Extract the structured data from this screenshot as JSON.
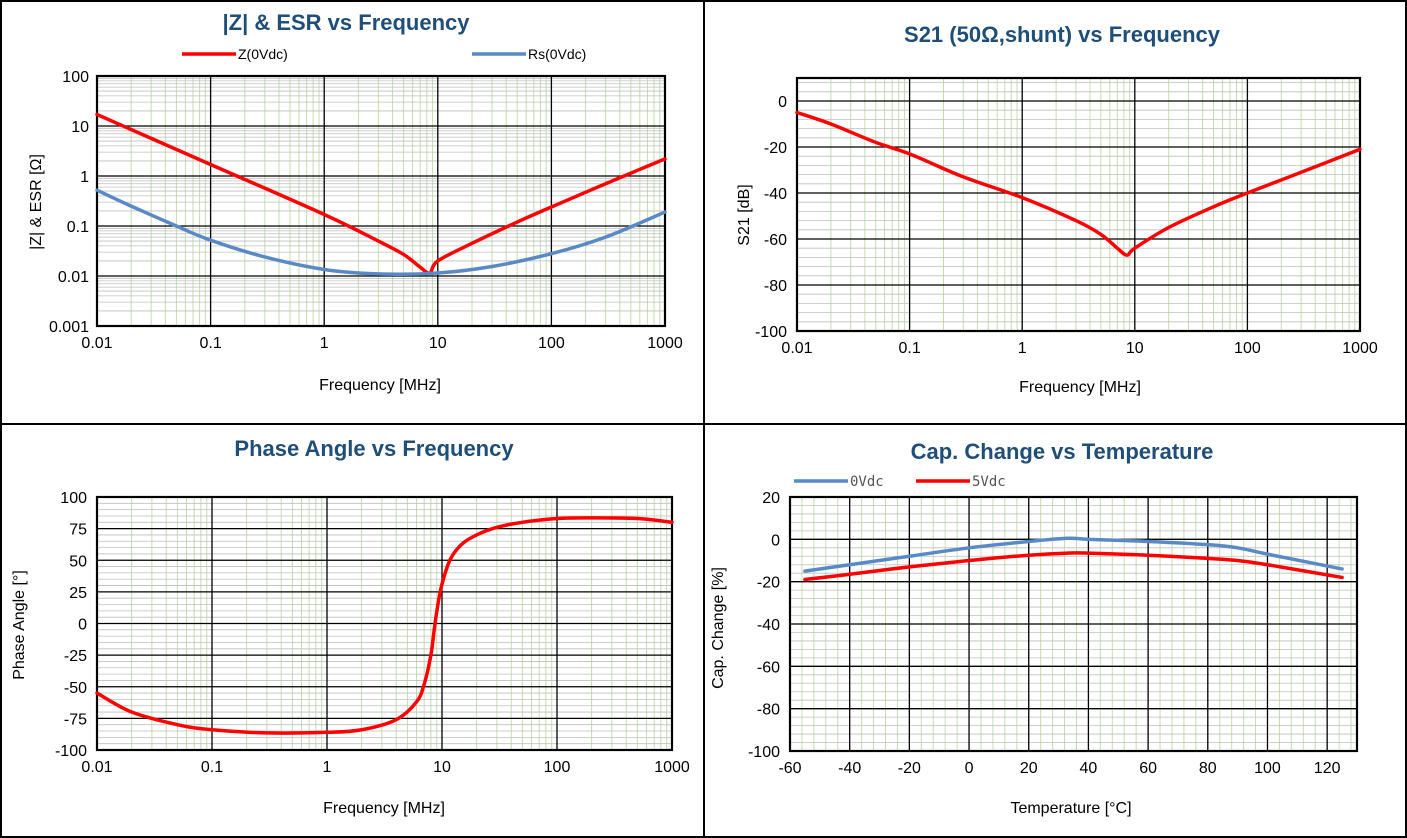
{
  "colors": {
    "title": "#1F4E79",
    "red": "#ff0000",
    "blue": "#5a8ac6",
    "minor_grid": "#c6dcae"
  },
  "chart_data": [
    {
      "id": "impedance",
      "type": "line",
      "title": "|Z| & ESR vs Frequency",
      "xlabel": "Frequency [MHz]",
      "ylabel": "|Z| & ESR [Ω]",
      "xscale": "log",
      "yscale": "log",
      "xlim": [
        0.01,
        1000
      ],
      "ylim": [
        0.001,
        100
      ],
      "xticks": [
        "0.01",
        "0.1",
        "1",
        "10",
        "100",
        "1000"
      ],
      "yticks": [
        "0.001",
        "0.01",
        "0.1",
        "1",
        "10",
        "100"
      ],
      "legend_position": "top",
      "grid": true,
      "series": [
        {
          "name": "Z(0Vdc)",
          "color": "#ff0000",
          "x": [
            0.01,
            0.1,
            1,
            3,
            5,
            7,
            8.5,
            10,
            20,
            50,
            100,
            300,
            1000
          ],
          "y": [
            17,
            1.7,
            0.17,
            0.05,
            0.027,
            0.015,
            0.0115,
            0.02,
            0.045,
            0.12,
            0.24,
            0.7,
            2.2
          ]
        },
        {
          "name": "Rs(0Vdc)",
          "color": "#5a8ac6",
          "x": [
            0.01,
            0.02,
            0.05,
            0.1,
            0.3,
            1,
            3,
            10,
            30,
            100,
            300,
            1000
          ],
          "y": [
            0.52,
            0.25,
            0.1,
            0.052,
            0.024,
            0.0135,
            0.011,
            0.0115,
            0.0155,
            0.028,
            0.06,
            0.19
          ]
        }
      ]
    },
    {
      "id": "s21",
      "type": "line",
      "title": "S21 (50Ω,shunt) vs Frequency",
      "xlabel": "Frequency [MHz]",
      "ylabel": "S21 [dB]",
      "xscale": "log",
      "xlim": [
        0.01,
        1000
      ],
      "ylim": [
        -100,
        10
      ],
      "xticks": [
        "0.01",
        "0.1",
        "1",
        "10",
        "100",
        "1000"
      ],
      "yticks": [
        "0",
        "-20",
        "-40",
        "-60",
        "-80",
        "-100"
      ],
      "grid": true,
      "series": [
        {
          "name": "",
          "color": "#ff0000",
          "x": [
            0.01,
            0.02,
            0.05,
            0.1,
            0.3,
            1,
            3,
            5,
            7,
            8.5,
            10,
            20,
            50,
            100,
            300,
            1000
          ],
          "y": [
            -5,
            -10,
            -18,
            -23,
            -33,
            -42,
            -52,
            -58,
            -64,
            -67,
            -64,
            -55,
            -46,
            -40,
            -31,
            -21
          ]
        }
      ]
    },
    {
      "id": "phase",
      "type": "line",
      "title": "Phase Angle vs Frequency",
      "xlabel": "Frequency [MHz]",
      "ylabel": "Phase Angle [°]",
      "xscale": "log",
      "xlim": [
        0.01,
        1000
      ],
      "ylim": [
        -100,
        100
      ],
      "xticks": [
        "0.01",
        "0.1",
        "1",
        "10",
        "100",
        "1000"
      ],
      "yticks": [
        "100",
        "75",
        "50",
        "25",
        "0",
        "-25",
        "-50",
        "-75",
        "-100"
      ],
      "grid": true,
      "series": [
        {
          "name": "",
          "color": "#ff0000",
          "x": [
            0.01,
            0.02,
            0.05,
            0.1,
            0.3,
            1,
            2,
            4,
            6,
            7,
            8,
            8.7,
            9.5,
            10.5,
            12,
            15,
            20,
            30,
            50,
            100,
            200,
            500,
            1000
          ],
          "y": [
            -55,
            -70,
            -80,
            -84,
            -86.5,
            -86,
            -84,
            -76,
            -62,
            -48,
            -25,
            0,
            22,
            38,
            52,
            63,
            70,
            76,
            80,
            83,
            83.5,
            83,
            80
          ]
        }
      ]
    },
    {
      "id": "temperature",
      "type": "line",
      "title": "Cap. Change vs Temperature",
      "xlabel": "Temperature [°C]",
      "ylabel": "Cap. Change [%]",
      "xlim": [
        -60,
        130
      ],
      "ylim": [
        -100,
        20
      ],
      "xticks": [
        "-60",
        "-40",
        "-20",
        "0",
        "20",
        "40",
        "60",
        "80",
        "100",
        "120"
      ],
      "yticks": [
        "20",
        "0",
        "-20",
        "-40",
        "-60",
        "-80",
        "-100"
      ],
      "legend_position": "top-left",
      "grid": true,
      "series": [
        {
          "name": "0Vdc",
          "color": "#5a8ac6",
          "x": [
            -55,
            -40,
            -20,
            0,
            20,
            33,
            40,
            60,
            80,
            90,
            100,
            125
          ],
          "y": [
            -15,
            -12,
            -8,
            -4,
            -1,
            0.5,
            0,
            -1,
            -2.5,
            -4,
            -7,
            -14
          ]
        },
        {
          "name": "5Vdc",
          "color": "#ff0000",
          "x": [
            -55,
            -40,
            -20,
            0,
            20,
            33,
            40,
            60,
            80,
            90,
            100,
            125
          ],
          "y": [
            -19,
            -16.5,
            -13,
            -10,
            -7.5,
            -6.5,
            -6.5,
            -7.5,
            -9,
            -10,
            -12,
            -18
          ]
        }
      ]
    }
  ]
}
